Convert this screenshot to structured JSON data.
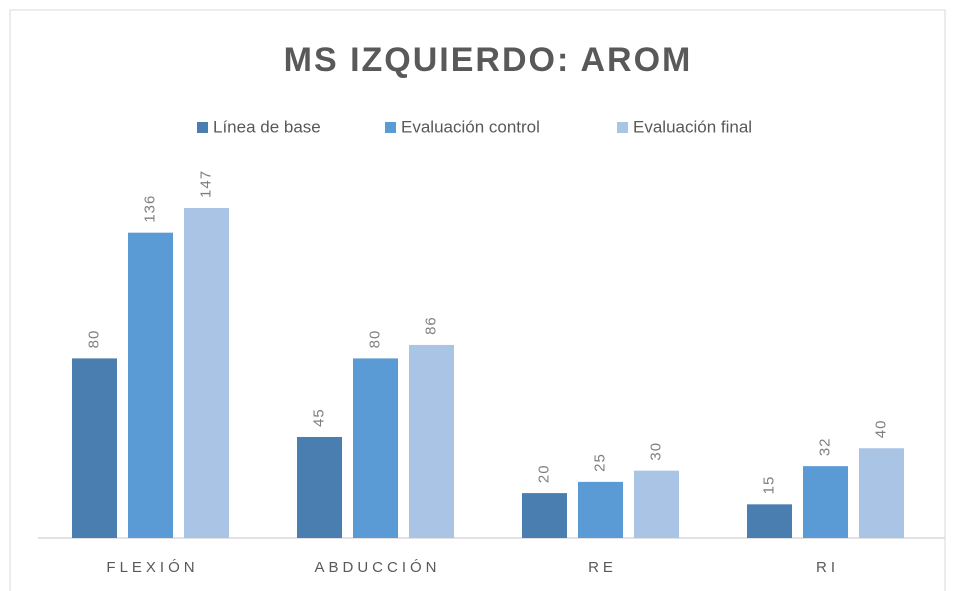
{
  "chart_data": {
    "type": "bar",
    "title": "MS IZQUIERDO:  AROM",
    "categories": [
      "FLEXIÓN",
      "ABDUCCIÓN",
      "RE",
      "RI"
    ],
    "series": [
      {
        "name": "Línea de base",
        "color": "#4a7eb0",
        "values": [
          80,
          45,
          20,
          15
        ]
      },
      {
        "name": "Evaluación control",
        "color": "#5b9bd5",
        "values": [
          136,
          80,
          25,
          32
        ]
      },
      {
        "name": "Evaluación final",
        "color": "#aac4e6",
        "values": [
          147,
          86,
          30,
          40
        ]
      }
    ],
    "legend": "top"
  }
}
